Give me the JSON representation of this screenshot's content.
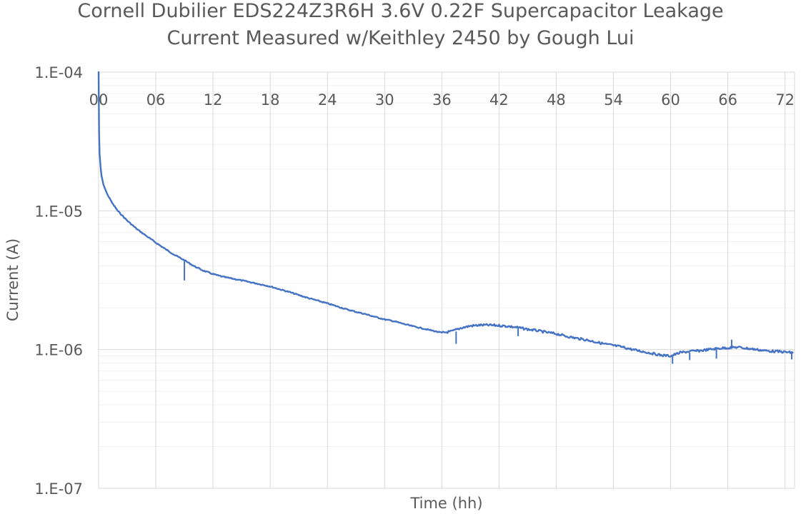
{
  "chart_data": {
    "type": "line",
    "title_lines": [
      "Cornell Dubilier EDS224Z3R6H 3.6V 0.22F Supercapacitor Leakage",
      "Current Measured w/Keithley 2450 by Gough Lui"
    ],
    "xlabel": "Time (hh)",
    "ylabel": "Current (A)",
    "y_scale": "log",
    "ylim": [
      1e-07,
      0.0001
    ],
    "xlim": [
      0,
      73
    ],
    "y_tick_labels": [
      "1.E-04",
      "1.E-05",
      "1.E-06",
      "1.E-07"
    ],
    "x_tick_labels": [
      "00",
      "06",
      "12",
      "18",
      "24",
      "30",
      "36",
      "42",
      "48",
      "54",
      "60",
      "66",
      "72"
    ],
    "x_axis_position": "top",
    "grid": true,
    "minor_grid": true,
    "legend": "none",
    "series_color": "#4472C4",
    "series": [
      {
        "x": [
          0,
          0.05,
          0.1,
          0.2,
          0.3,
          0.5,
          0.75,
          1,
          1.5,
          2,
          3,
          4,
          5,
          6,
          7,
          8,
          9,
          10,
          11,
          12,
          13,
          14,
          15,
          16,
          17,
          18,
          19,
          20,
          21,
          22,
          23,
          24,
          25,
          26,
          27,
          28,
          29,
          30,
          31,
          32,
          33,
          34,
          35,
          36,
          37,
          38,
          39,
          40,
          41,
          42,
          43,
          44,
          45,
          46,
          47,
          48,
          49,
          50,
          51,
          52,
          53,
          54,
          55,
          56,
          57,
          58,
          59,
          60,
          61,
          62,
          63,
          64,
          65,
          66,
          67,
          68,
          69,
          70,
          71,
          72,
          72.8
        ],
        "values": [
          0.0001,
          3.6e-05,
          2.6e-05,
          2.1e-05,
          1.8e-05,
          1.55e-05,
          1.4e-05,
          1.28e-05,
          1.12e-05,
          1e-05,
          8.5e-06,
          7.4e-06,
          6.6e-06,
          5.9e-06,
          5.3e-06,
          4.8e-06,
          4.4e-06,
          4e-06,
          3.7e-06,
          3.5e-06,
          3.35e-06,
          3.25e-06,
          3.15e-06,
          3.05e-06,
          2.95e-06,
          2.85e-06,
          2.72e-06,
          2.6e-06,
          2.47e-06,
          2.35e-06,
          2.25e-06,
          2.15e-06,
          2.05e-06,
          1.95e-06,
          1.87e-06,
          1.8e-06,
          1.72e-06,
          1.65e-06,
          1.6e-06,
          1.53e-06,
          1.47e-06,
          1.42e-06,
          1.37e-06,
          1.32e-06,
          1.35e-06,
          1.43e-06,
          1.48e-06,
          1.5e-06,
          1.5e-06,
          1.49e-06,
          1.47e-06,
          1.44e-06,
          1.4e-06,
          1.37e-06,
          1.33e-06,
          1.3e-06,
          1.25e-06,
          1.21e-06,
          1.18e-06,
          1.14e-06,
          1.1e-06,
          1.07e-06,
          1.04e-06,
          1e-06,
          9.7e-07,
          9.4e-07,
          9.1e-07,
          9e-07,
          9.5e-07,
          9.7e-07,
          9.8e-07,
          1e-06,
          1.02e-06,
          1.03e-06,
          1.04e-06,
          1.02e-06,
          1e-06,
          9.8e-07,
          9.7e-07,
          9.6e-07,
          9.5e-07
        ]
      }
    ],
    "spikes": [
      {
        "x": 9,
        "from": 4.4e-06,
        "to": 3.15e-06
      },
      {
        "x": 37.5,
        "from": 1.35e-06,
        "to": 1.1e-06
      },
      {
        "x": 44,
        "from": 1.44e-06,
        "to": 1.25e-06
      },
      {
        "x": 60.2,
        "from": 9.1e-07,
        "to": 7.9e-07
      },
      {
        "x": 62,
        "from": 9.5e-07,
        "to": 8.4e-07
      },
      {
        "x": 64.8,
        "from": 1.01e-06,
        "to": 8.6e-07
      },
      {
        "x": 66.4,
        "from": 1.04e-06,
        "to": 1.18e-06
      },
      {
        "x": 72.7,
        "from": 9.5e-07,
        "to": 8.5e-07
      }
    ]
  }
}
